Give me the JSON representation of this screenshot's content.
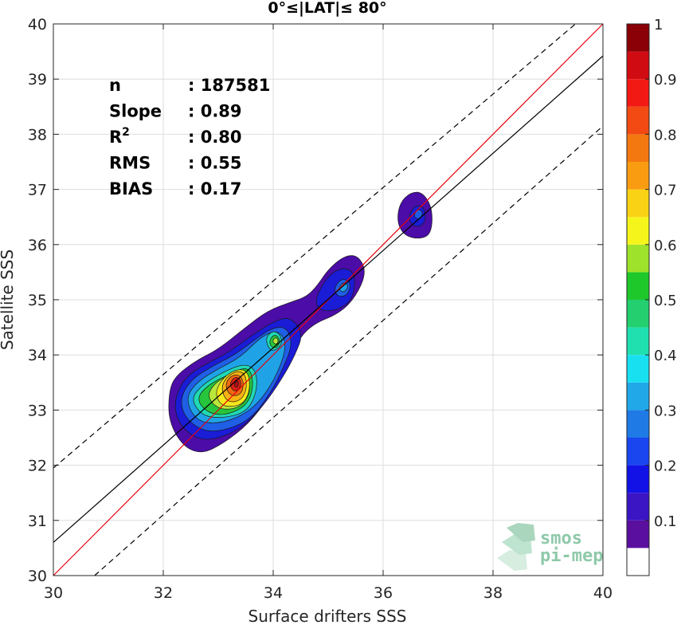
{
  "chart_data": {
    "type": "heatmap",
    "title": "0°≤|LAT|≤ 80°",
    "xlabel": "Surface drifters SSS",
    "ylabel": "Satellite SSS",
    "xlim": [
      30,
      40
    ],
    "ylim": [
      30,
      40
    ],
    "xticks": [
      30,
      32,
      34,
      36,
      38,
      40
    ],
    "yticks": [
      30,
      31,
      32,
      33,
      34,
      35,
      36,
      37,
      38,
      39,
      40
    ],
    "grid": true,
    "stats": [
      {
        "label": "n",
        "value": ": 187581"
      },
      {
        "label": "Slope",
        "value": ": 0.89"
      },
      {
        "label": "R",
        "sup": "2",
        "value": ": 0.80"
      },
      {
        "label": "RMS",
        "value": ": 0.55"
      },
      {
        "label": "BIAS",
        "value": ": 0.17"
      }
    ],
    "lines": [
      {
        "name": "1:1",
        "color": "#e8000b",
        "style": "solid",
        "points": [
          [
            30,
            30
          ],
          [
            40,
            40
          ]
        ]
      },
      {
        "name": "fit",
        "color": "#000000",
        "style": "solid",
        "points": [
          [
            30,
            30.6
          ],
          [
            40,
            39.42
          ]
        ]
      },
      {
        "name": "upper",
        "color": "#000000",
        "style": "dashed",
        "points": [
          [
            30,
            31.95
          ],
          [
            39.5,
            40
          ]
        ]
      },
      {
        "name": "lower",
        "color": "#000000",
        "style": "dashed",
        "points": [
          [
            30.75,
            30
          ],
          [
            40,
            38.15
          ]
        ]
      }
    ],
    "density_contours": [
      {
        "level": 0.05,
        "color": "#4b0ca8",
        "polygons": [
          [
            [
              32.1,
              33.3
            ],
            [
              32.2,
              33.6
            ],
            [
              32.6,
              33.9
            ],
            [
              33.0,
              34.1
            ],
            [
              33.5,
              34.5
            ],
            [
              33.9,
              34.8
            ],
            [
              34.3,
              34.95
            ],
            [
              34.6,
              35.05
            ],
            [
              34.8,
              35.25
            ],
            [
              35.0,
              35.55
            ],
            [
              35.3,
              35.8
            ],
            [
              35.55,
              35.8
            ],
            [
              35.7,
              35.5
            ],
            [
              35.5,
              35.05
            ],
            [
              35.2,
              34.75
            ],
            [
              34.7,
              34.55
            ],
            [
              34.4,
              34.2
            ],
            [
              34.2,
              33.7
            ],
            [
              33.9,
              33.2
            ],
            [
              33.55,
              32.75
            ],
            [
              33.1,
              32.4
            ],
            [
              32.7,
              32.2
            ],
            [
              32.35,
              32.35
            ],
            [
              32.1,
              32.8
            ]
          ],
          [
            [
              36.25,
              36.4
            ],
            [
              36.3,
              36.75
            ],
            [
              36.5,
              36.95
            ],
            [
              36.72,
              36.95
            ],
            [
              36.9,
              36.65
            ],
            [
              36.88,
              36.2
            ],
            [
              36.68,
              36.1
            ],
            [
              36.4,
              36.15
            ]
          ]
        ]
      },
      {
        "level": 0.1,
        "color": "#1a1cd6",
        "polygons": [
          [
            [
              32.2,
              33.2
            ],
            [
              32.4,
              33.6
            ],
            [
              32.8,
              33.85
            ],
            [
              33.2,
              34.05
            ],
            [
              33.6,
              34.35
            ],
            [
              34.0,
              34.6
            ],
            [
              34.3,
              34.7
            ],
            [
              34.55,
              34.4
            ],
            [
              34.4,
              34.0
            ],
            [
              34.15,
              33.55
            ],
            [
              33.8,
              33.05
            ],
            [
              33.4,
              32.65
            ],
            [
              32.9,
              32.45
            ],
            [
              32.55,
              32.5
            ],
            [
              32.25,
              32.8
            ]
          ],
          [
            [
              34.75,
              35.0
            ],
            [
              35.0,
              35.45
            ],
            [
              35.3,
              35.6
            ],
            [
              35.5,
              35.45
            ],
            [
              35.45,
              35.0
            ],
            [
              35.15,
              34.8
            ],
            [
              34.85,
              34.8
            ]
          ],
          [
            [
              36.45,
              36.45
            ],
            [
              36.55,
              36.7
            ],
            [
              36.75,
              36.7
            ],
            [
              36.78,
              36.4
            ],
            [
              36.6,
              36.3
            ]
          ]
        ]
      },
      {
        "level": 0.2,
        "color": "#1f5fe6",
        "polygons": [
          [
            [
              32.3,
              33.2
            ],
            [
              32.5,
              33.55
            ],
            [
              32.9,
              33.8
            ],
            [
              33.3,
              34.0
            ],
            [
              33.7,
              34.3
            ],
            [
              34.0,
              34.5
            ],
            [
              34.25,
              34.5
            ],
            [
              34.35,
              34.2
            ],
            [
              34.2,
              33.8
            ],
            [
              33.95,
              33.3
            ],
            [
              33.6,
              32.85
            ],
            [
              33.2,
              32.65
            ],
            [
              32.75,
              32.6
            ],
            [
              32.4,
              32.85
            ]
          ],
          [
            [
              35.1,
              35.2
            ],
            [
              35.25,
              35.4
            ],
            [
              35.42,
              35.3
            ],
            [
              35.35,
              35.08
            ],
            [
              35.18,
              35.05
            ]
          ],
          [
            [
              36.55,
              36.5
            ],
            [
              36.62,
              36.65
            ],
            [
              36.73,
              36.6
            ],
            [
              36.68,
              36.45
            ]
          ]
        ]
      },
      {
        "level": 0.3,
        "color": "#1fa3e6",
        "polygons": [
          [
            [
              32.4,
              33.2
            ],
            [
              32.6,
              33.5
            ],
            [
              33.0,
              33.75
            ],
            [
              33.4,
              33.95
            ],
            [
              33.8,
              34.35
            ],
            [
              34.1,
              34.45
            ],
            [
              34.25,
              34.2
            ],
            [
              34.1,
              33.7
            ],
            [
              33.8,
              33.2
            ],
            [
              33.45,
              32.9
            ],
            [
              33.0,
              32.75
            ],
            [
              32.6,
              32.8
            ]
          ],
          [
            [
              35.18,
              35.2
            ],
            [
              35.28,
              35.33
            ],
            [
              35.38,
              35.25
            ],
            [
              35.28,
              35.12
            ]
          ]
        ]
      },
      {
        "level": 0.4,
        "color": "#20d9b4",
        "polygons": [
          [
            [
              32.5,
              33.2
            ],
            [
              32.7,
              33.45
            ],
            [
              33.1,
              33.7
            ],
            [
              33.5,
              33.85
            ],
            [
              33.7,
              33.7
            ],
            [
              33.7,
              33.3
            ],
            [
              33.5,
              32.95
            ],
            [
              33.05,
              32.85
            ],
            [
              32.7,
              32.9
            ]
          ],
          [
            [
              33.85,
              34.3
            ],
            [
              34.0,
              34.45
            ],
            [
              34.15,
              34.35
            ],
            [
              34.15,
              34.15
            ],
            [
              33.95,
              34.05
            ]
          ]
        ]
      },
      {
        "level": 0.5,
        "color": "#27c53b",
        "polygons": [
          [
            [
              32.6,
              33.2
            ],
            [
              32.8,
              33.45
            ],
            [
              33.2,
              33.65
            ],
            [
              33.55,
              33.8
            ],
            [
              33.65,
              33.5
            ],
            [
              33.55,
              33.1
            ],
            [
              33.15,
              32.9
            ],
            [
              32.8,
              32.95
            ]
          ],
          [
            [
              33.92,
              34.25
            ],
            [
              34.02,
              34.38
            ],
            [
              34.12,
              34.3
            ],
            [
              34.1,
              34.15
            ],
            [
              33.98,
              34.12
            ]
          ]
        ]
      },
      {
        "level": 0.6,
        "color": "#b8e63a",
        "polygons": [
          [
            [
              32.8,
              33.3
            ],
            [
              33.0,
              33.55
            ],
            [
              33.3,
              33.65
            ],
            [
              33.55,
              33.6
            ],
            [
              33.58,
              33.3
            ],
            [
              33.4,
              33.05
            ],
            [
              33.1,
              33.0
            ],
            [
              32.9,
              33.1
            ]
          ],
          [
            [
              33.98,
              34.25
            ],
            [
              34.05,
              34.33
            ],
            [
              34.1,
              34.25
            ],
            [
              34.05,
              34.18
            ]
          ]
        ]
      },
      {
        "level": 0.65,
        "color": "#f6e81a",
        "polygons": [
          [
            [
              32.95,
              33.35
            ],
            [
              33.1,
              33.6
            ],
            [
              33.35,
              33.75
            ],
            [
              33.55,
              33.7
            ],
            [
              33.58,
              33.35
            ],
            [
              33.45,
              33.1
            ],
            [
              33.15,
              33.05
            ],
            [
              33.0,
              33.15
            ]
          ]
        ]
      },
      {
        "level": 0.7,
        "color": "#f9b214",
        "polygons": [
          [
            [
              33.05,
              33.4
            ],
            [
              33.15,
              33.6
            ],
            [
              33.35,
              33.72
            ],
            [
              33.5,
              33.65
            ],
            [
              33.52,
              33.35
            ],
            [
              33.38,
              33.15
            ],
            [
              33.15,
              33.15
            ]
          ]
        ]
      },
      {
        "level": 0.8,
        "color": "#f06a12",
        "polygons": [
          [
            [
              33.12,
              33.45
            ],
            [
              33.22,
              33.62
            ],
            [
              33.38,
              33.65
            ],
            [
              33.47,
              33.5
            ],
            [
              33.42,
              33.28
            ],
            [
              33.22,
              33.25
            ]
          ]
        ]
      },
      {
        "level": 0.9,
        "color": "#d81e14",
        "polygons": [
          [
            [
              33.2,
              33.45
            ],
            [
              33.28,
              33.6
            ],
            [
              33.4,
              33.58
            ],
            [
              33.42,
              33.42
            ],
            [
              33.3,
              33.32
            ]
          ]
        ]
      },
      {
        "level": 1.0,
        "color": "#a50f15",
        "polygons": [
          [
            [
              33.28,
              33.45
            ],
            [
              33.34,
              33.55
            ],
            [
              33.38,
              33.48
            ],
            [
              33.34,
              33.4
            ]
          ]
        ]
      }
    ],
    "colorbar": {
      "ticks": [
        "0.1",
        "0.2",
        "0.3",
        "0.4",
        "0.5",
        "0.6",
        "0.7",
        "0.8",
        "0.9",
        "1"
      ],
      "tick_values": [
        0.1,
        0.2,
        0.3,
        0.4,
        0.5,
        0.6,
        0.7,
        0.8,
        0.9,
        1.0
      ],
      "range": [
        0,
        1
      ],
      "bins": [
        {
          "from": 0.0,
          "to": 0.05,
          "color": "#ffffff"
        },
        {
          "from": 0.05,
          "to": 0.1,
          "color": "#5a0f9e"
        },
        {
          "from": 0.1,
          "to": 0.15,
          "color": "#3b14c4"
        },
        {
          "from": 0.15,
          "to": 0.2,
          "color": "#1212e6"
        },
        {
          "from": 0.2,
          "to": 0.25,
          "color": "#1a46f0"
        },
        {
          "from": 0.25,
          "to": 0.3,
          "color": "#1f7ae6"
        },
        {
          "from": 0.3,
          "to": 0.35,
          "color": "#20a8e8"
        },
        {
          "from": 0.35,
          "to": 0.4,
          "color": "#18e0f0"
        },
        {
          "from": 0.4,
          "to": 0.45,
          "color": "#20e0b0"
        },
        {
          "from": 0.45,
          "to": 0.5,
          "color": "#23cf6e"
        },
        {
          "from": 0.5,
          "to": 0.55,
          "color": "#1fc82a"
        },
        {
          "from": 0.55,
          "to": 0.6,
          "color": "#9fe22b"
        },
        {
          "from": 0.6,
          "to": 0.65,
          "color": "#f5f51c"
        },
        {
          "from": 0.65,
          "to": 0.7,
          "color": "#f9d215"
        },
        {
          "from": 0.7,
          "to": 0.75,
          "color": "#f99c12"
        },
        {
          "from": 0.75,
          "to": 0.8,
          "color": "#f47810"
        },
        {
          "from": 0.8,
          "to": 0.85,
          "color": "#f24a12"
        },
        {
          "from": 0.85,
          "to": 0.9,
          "color": "#f21814"
        },
        {
          "from": 0.9,
          "to": 0.95,
          "color": "#d00c12"
        },
        {
          "from": 0.95,
          "to": 1.0,
          "color": "#8a0006"
        }
      ]
    }
  },
  "logo": {
    "line1": "smos",
    "line2": "pi-mep"
  }
}
